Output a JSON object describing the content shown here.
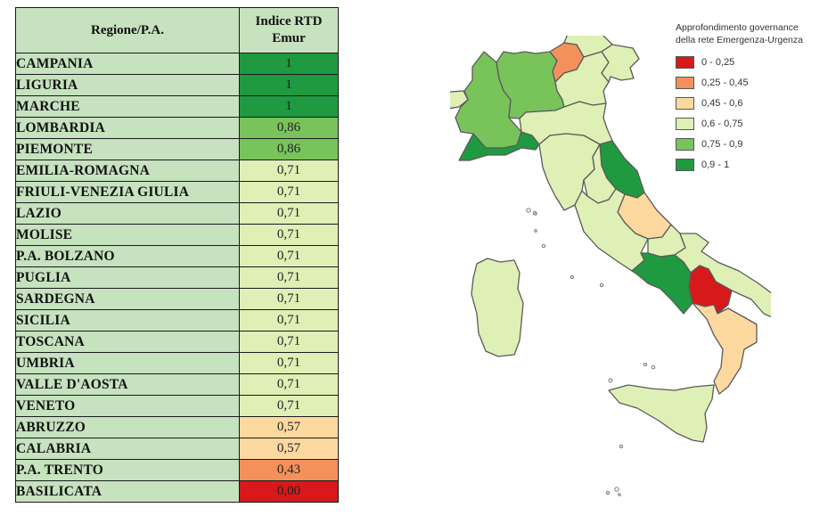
{
  "table": {
    "header_region": "Regione/P.A.",
    "header_index_line1": "Indice RTD",
    "header_index_line2": "Emur"
  },
  "legend": {
    "title_line1": "Approfondimento governance",
    "title_line2": "della rete Emergenza-Urgenza",
    "items": [
      {
        "label": "0 - 0,25",
        "color": "#d7191c"
      },
      {
        "label": "0,25 - 0,45",
        "color": "#f4915a"
      },
      {
        "label": "0,45 - 0,6",
        "color": "#fdd9a0"
      },
      {
        "label": "0,6 - 0,75",
        "color": "#def0b6"
      },
      {
        "label": "0,75 - 0,9",
        "color": "#79c35b"
      },
      {
        "label": "0,9 - 1",
        "color": "#1f9a40"
      }
    ]
  },
  "chart_data": {
    "type": "table",
    "columns": [
      "Regione/P.A.",
      "Indice RTD Emur"
    ],
    "rows": [
      {
        "region": "CAMPANIA",
        "value": "1",
        "color": "#1f9a40"
      },
      {
        "region": "LIGURIA",
        "value": "1",
        "color": "#1f9a40"
      },
      {
        "region": "MARCHE",
        "value": "1",
        "color": "#1f9a40"
      },
      {
        "region": "LOMBARDIA",
        "value": "0,86",
        "color": "#79c35b"
      },
      {
        "region": "PIEMONTE",
        "value": "0,86",
        "color": "#79c35b"
      },
      {
        "region": "EMILIA-ROMAGNA",
        "value": "0,71",
        "color": "#def0b6"
      },
      {
        "region": "FRIULI-VENEZIA GIULIA",
        "value": "0,71",
        "color": "#def0b6"
      },
      {
        "region": "LAZIO",
        "value": "0,71",
        "color": "#def0b6"
      },
      {
        "region": "MOLISE",
        "value": "0,71",
        "color": "#def0b6"
      },
      {
        "region": "P.A. BOLZANO",
        "value": "0,71",
        "color": "#def0b6"
      },
      {
        "region": "PUGLIA",
        "value": "0,71",
        "color": "#def0b6"
      },
      {
        "region": "SARDEGNA",
        "value": "0,71",
        "color": "#def0b6"
      },
      {
        "region": "SICILIA",
        "value": "0,71",
        "color": "#def0b6"
      },
      {
        "region": "TOSCANA",
        "value": "0,71",
        "color": "#def0b6"
      },
      {
        "region": "UMBRIA",
        "value": "0,71",
        "color": "#def0b6"
      },
      {
        "region": "VALLE D'AOSTA",
        "value": "0,71",
        "color": "#def0b6"
      },
      {
        "region": "VENETO",
        "value": "0,71",
        "color": "#def0b6"
      },
      {
        "region": "ABRUZZO",
        "value": "0,57",
        "color": "#fdd9a0"
      },
      {
        "region": "CALABRIA",
        "value": "0,57",
        "color": "#fdd9a0"
      },
      {
        "region": "P.A. TRENTO",
        "value": "0,43",
        "color": "#f4915a"
      },
      {
        "region": "BASILICATA",
        "value": "0,00",
        "color": "#d7191c"
      }
    ]
  }
}
